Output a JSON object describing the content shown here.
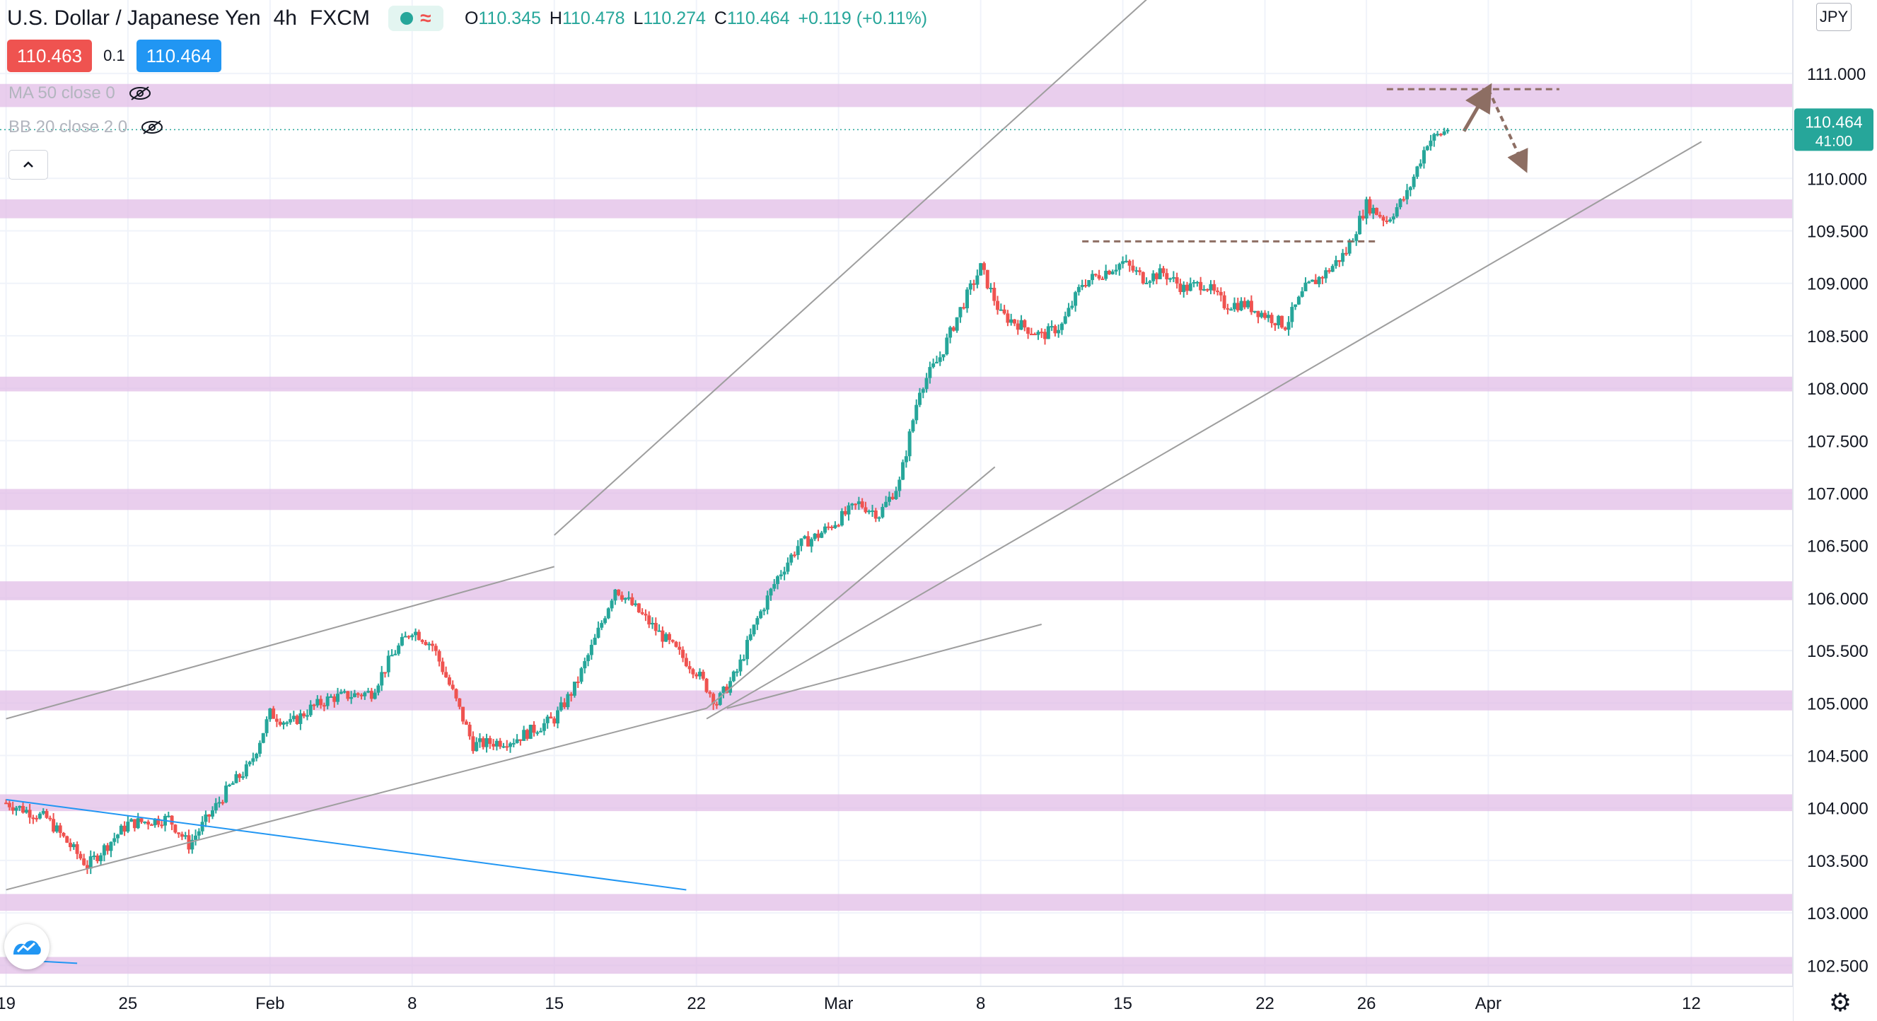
{
  "header": {
    "title": "U.S. Dollar / Japanese Yen",
    "interval": "4h",
    "exchange": "FXCM",
    "ohlc": {
      "o_label": "O",
      "o": "110.345",
      "h_label": "H",
      "h": "110.478",
      "l_label": "L",
      "l": "110.274",
      "c_label": "C",
      "c": "110.464",
      "change": "+0.119 (+0.11%)"
    }
  },
  "quote": {
    "sell": "110.463",
    "spread": "0.1",
    "buy": "110.464"
  },
  "indicators": {
    "ma": "MA 50 close 0",
    "bb": "BB 20 close 2 0"
  },
  "currency": "JPY",
  "last_price": {
    "value": "110.464",
    "countdown": "41:00"
  },
  "colors": {
    "up": "#26a69a",
    "down": "#ef5350",
    "zone": "#e1bee7",
    "trend": "#9e9e9e",
    "blue_trend": "#2196f3",
    "annotation": "#8d6e63"
  },
  "chart_data": {
    "type": "candlestick",
    "title": "U.S. Dollar / Japanese Yen, 4h, FXCM",
    "ylim": [
      102.3,
      111.7
    ],
    "y_ticks": [
      "102.500",
      "103.000",
      "103.500",
      "104.000",
      "104.500",
      "105.000",
      "105.500",
      "106.000",
      "106.500",
      "107.000",
      "107.500",
      "108.000",
      "108.500",
      "109.000",
      "109.500",
      "110.000",
      "111.000"
    ],
    "x_ticks": [
      "19",
      "25",
      "Feb",
      "8",
      "15",
      "22",
      "Mar",
      "8",
      "15",
      "22",
      "26",
      "Apr",
      "12"
    ],
    "x_tick_days": [
      -12,
      -6,
      1,
      8,
      15,
      22,
      29,
      36,
      43,
      50,
      55,
      61,
      71
    ],
    "x_range_days": [
      -12.3,
      76
    ],
    "grid": true,
    "key_price_close_path": [
      [
        -12,
        104.05
      ],
      [
        -10,
        103.9
      ],
      [
        -8,
        103.45
      ],
      [
        -6,
        103.85
      ],
      [
        -4,
        103.9
      ],
      [
        -3,
        103.65
      ],
      [
        -1,
        104.2
      ],
      [
        0,
        104.4
      ],
      [
        1,
        104.9
      ],
      [
        2,
        104.8
      ],
      [
        3,
        104.95
      ],
      [
        4,
        105.05
      ],
      [
        6,
        105.1
      ],
      [
        7,
        105.45
      ],
      [
        8,
        105.7
      ],
      [
        9,
        105.55
      ],
      [
        10,
        105.1
      ],
      [
        11,
        104.6
      ],
      [
        13,
        104.65
      ],
      [
        15,
        104.85
      ],
      [
        16,
        105.15
      ],
      [
        17,
        105.6
      ],
      [
        18,
        106.1
      ],
      [
        19,
        105.9
      ],
      [
        20,
        105.7
      ],
      [
        21,
        105.5
      ],
      [
        22,
        105.3
      ],
      [
        23,
        105.0
      ],
      [
        24,
        105.3
      ],
      [
        25,
        105.8
      ],
      [
        26,
        106.2
      ],
      [
        27,
        106.5
      ],
      [
        28,
        106.6
      ],
      [
        29,
        106.75
      ],
      [
        30,
        106.9
      ],
      [
        31,
        106.8
      ],
      [
        32,
        107.1
      ],
      [
        33,
        108.0
      ],
      [
        34,
        108.3
      ],
      [
        35,
        108.75
      ],
      [
        36,
        109.15
      ],
      [
        37,
        108.7
      ],
      [
        38,
        108.6
      ],
      [
        39,
        108.5
      ],
      [
        40,
        108.6
      ],
      [
        41,
        109.0
      ],
      [
        42,
        109.1
      ],
      [
        43,
        109.2
      ],
      [
        44,
        109.05
      ],
      [
        45,
        109.1
      ],
      [
        46,
        108.95
      ],
      [
        47,
        109.0
      ],
      [
        48,
        108.8
      ],
      [
        49,
        108.8
      ],
      [
        50,
        108.7
      ],
      [
        51,
        108.6
      ],
      [
        52,
        108.95
      ],
      [
        53,
        109.1
      ],
      [
        54,
        109.3
      ],
      [
        55,
        109.75
      ],
      [
        56,
        109.6
      ],
      [
        57,
        109.85
      ],
      [
        58,
        110.35
      ],
      [
        59,
        110.464
      ]
    ],
    "support_resistance_zones": [
      [
        102.42,
        102.58
      ],
      [
        103.02,
        103.18
      ],
      [
        103.97,
        104.13
      ],
      [
        104.93,
        105.12
      ],
      [
        105.98,
        106.16
      ],
      [
        106.84,
        107.04
      ],
      [
        107.97,
        108.11
      ],
      [
        109.62,
        109.8
      ],
      [
        110.68,
        110.9
      ]
    ],
    "trend_lines": [
      {
        "from": [
          -12,
          104.85
        ],
        "to": [
          15,
          106.3
        ]
      },
      {
        "from": [
          15,
          106.6
        ],
        "to": [
          55,
          113.6
        ]
      },
      {
        "from": [
          22.5,
          104.95
        ],
        "to": [
          36.7,
          107.25
        ]
      },
      {
        "from": [
          -12,
          103.22
        ],
        "to": [
          22.5,
          104.95
        ]
      },
      {
        "from": [
          22.5,
          104.85
        ],
        "to": [
          71.5,
          110.35
        ]
      },
      {
        "from": [
          23.5,
          104.95
        ],
        "to": [
          39,
          105.75
        ]
      }
    ],
    "blue_lines": [
      {
        "from": [
          -12,
          104.08
        ],
        "to": [
          21.5,
          103.22
        ]
      },
      {
        "from": [
          -11.4,
          102.55
        ],
        "to": [
          -8.5,
          102.52
        ]
      }
    ],
    "resistance_levels": [
      {
        "x": [
          41,
          55.5
        ],
        "y": 109.4
      },
      {
        "x": [
          56,
          64.5
        ],
        "y": 110.85
      }
    ],
    "projection_up": [
      [
        59.8,
        110.45
      ],
      [
        61,
        110.85
      ]
    ],
    "projection_down": [
      [
        61,
        110.85
      ],
      [
        62.8,
        110.1
      ]
    ]
  }
}
